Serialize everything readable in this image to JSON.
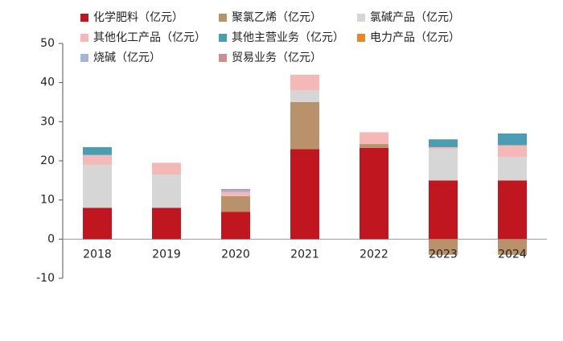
{
  "chart_data": {
    "type": "stacked_bar",
    "categories": [
      "2018",
      "2019",
      "2020",
      "2021",
      "2022",
      "2023",
      "2024"
    ],
    "series": [
      {
        "name": "化学肥料（亿元）",
        "color": "#c0161f",
        "values": [
          8,
          8,
          7,
          23,
          23.3,
          15,
          15
        ]
      },
      {
        "name": "聚氯乙烯（亿元）",
        "color": "#b9916b",
        "values": [
          0,
          0,
          4,
          12,
          1,
          -4,
          -4
        ]
      },
      {
        "name": "氯碱产品（亿元）",
        "color": "#d6d6d6",
        "values": [
          11,
          8.5,
          0,
          3,
          0,
          8,
          6
        ]
      },
      {
        "name": "其他化工产品（亿元）",
        "color": "#f4b9b6",
        "values": [
          2.5,
          3,
          1,
          4,
          3,
          0.5,
          3
        ]
      },
      {
        "name": "其他主营业务（亿元）",
        "color": "#4a9db3",
        "values": [
          2,
          0,
          0,
          0,
          0,
          2,
          3
        ]
      },
      {
        "name": "电力产品（亿元）",
        "color": "#e0892e",
        "values": [
          0,
          0,
          0,
          0,
          0,
          0,
          0
        ]
      },
      {
        "name": "烧碱（亿元）",
        "color": "#a7b5d4",
        "values": [
          0,
          0,
          0.5,
          0,
          0,
          0,
          0
        ]
      },
      {
        "name": "贸易业务（亿元）",
        "color": "#cf8c92",
        "values": [
          0,
          0,
          0.3,
          0,
          0,
          0,
          0
        ]
      }
    ],
    "ylim": [
      -10,
      50
    ],
    "yticks": [
      -10,
      0,
      10,
      20,
      30,
      40,
      50
    ],
    "grid": false,
    "legend": "top"
  }
}
